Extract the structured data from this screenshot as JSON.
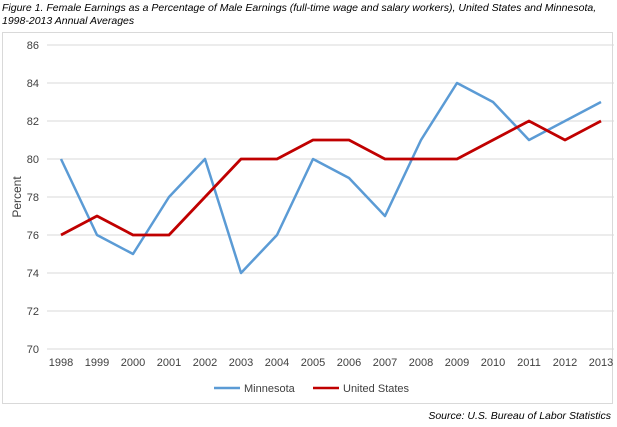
{
  "title_line1": "Figure 1. Female Earnings as a Percentage of Male Earnings (full-time wage and salary workers), United States and Minnesota,",
  "title_line2": "1998-2013 Annual Averages",
  "source": "Source:  U.S. Bureau of Labor Statistics",
  "chart_data": {
    "type": "line",
    "title": "Figure 1. Female Earnings as a Percentage of Male Earnings (full-time wage and salary workers), United States and Minnesota, 1998-2013 Annual Averages",
    "xlabel": "",
    "ylabel": "Percent",
    "categories": [
      "1998",
      "1999",
      "2000",
      "2001",
      "2002",
      "2003",
      "2004",
      "2005",
      "2006",
      "2007",
      "2008",
      "2009",
      "2010",
      "2011",
      "2012",
      "2013"
    ],
    "ylim": [
      70,
      86
    ],
    "yticks": [
      70,
      72,
      74,
      76,
      78,
      80,
      82,
      84,
      86
    ],
    "grid": true,
    "legend": "bottom",
    "series": [
      {
        "name": "Minnesota",
        "color": "#5b9bd5",
        "values": [
          80,
          76,
          75,
          78,
          80,
          74,
          76,
          80,
          79,
          77,
          81,
          84,
          83,
          81,
          82,
          83
        ]
      },
      {
        "name": "United States",
        "color": "#c00000",
        "values": [
          76,
          77,
          76,
          76,
          78,
          80,
          80,
          81,
          81,
          80,
          80,
          80,
          81,
          82,
          81,
          82
        ]
      }
    ]
  }
}
